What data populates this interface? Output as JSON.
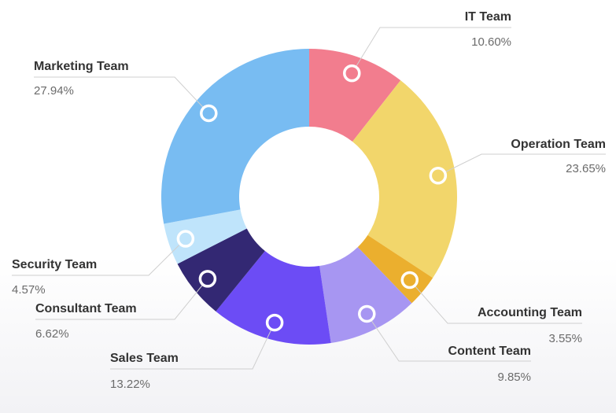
{
  "chart_data": {
    "type": "pie",
    "variant": "donut",
    "title": "",
    "value_format": "percent",
    "slices": [
      {
        "label": "IT Team",
        "value": 10.6,
        "value_text": "10.60%",
        "color": "#F27D8E"
      },
      {
        "label": "Operation Team",
        "value": 23.65,
        "value_text": "23.65%",
        "color": "#F2D66B"
      },
      {
        "label": "Accounting Team",
        "value": 3.55,
        "value_text": "3.55%",
        "color": "#EBAF2E"
      },
      {
        "label": "Content Team",
        "value": 9.85,
        "value_text": "9.85%",
        "color": "#A796F2"
      },
      {
        "label": "Sales Team",
        "value": 13.22,
        "value_text": "13.22%",
        "color": "#6C4CF5"
      },
      {
        "label": "Consultant Team",
        "value": 6.62,
        "value_text": "6.62%",
        "color": "#332873"
      },
      {
        "label": "Security Team",
        "value": 4.57,
        "value_text": "4.57%",
        "color": "#BFE4FB"
      },
      {
        "label": "Marketing Team",
        "value": 27.94,
        "value_text": "27.94%",
        "color": "#78BCF2"
      }
    ]
  }
}
